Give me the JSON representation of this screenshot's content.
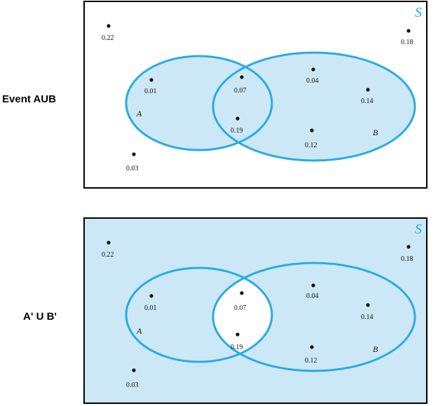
{
  "colors": {
    "circle_stroke": "#29abe2",
    "fill": "#cce8f7",
    "border": "#000000",
    "dot": "#111111",
    "s_label": "#29abe2"
  },
  "diagrams": [
    {
      "row_label": "Event AUB",
      "space_label": "S",
      "set_a_label": "A",
      "set_b_label": "B",
      "shading": "union",
      "points": [
        "0.22",
        "0.18",
        "0.01",
        "0.07",
        "0.04",
        "0.14",
        "0.19",
        "0.12",
        "0.03"
      ]
    },
    {
      "row_label": "A' U B'",
      "space_label": "S",
      "set_a_label": "A",
      "set_b_label": "B",
      "shading": "complement-of-intersection",
      "points": [
        "0.22",
        "0.18",
        "0.01",
        "0.07",
        "0.04",
        "0.14",
        "0.19",
        "0.12",
        "0.03"
      ]
    }
  ]
}
